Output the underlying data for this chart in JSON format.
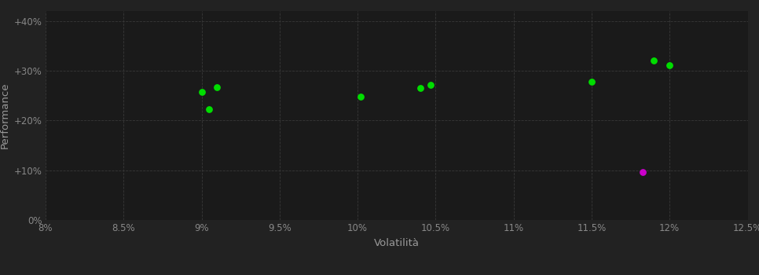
{
  "background_color": "#222222",
  "plot_bg_color": "#1a1a1a",
  "xlabel": "Volatilità",
  "ylabel": "Performance",
  "xlim": [
    0.08,
    0.125
  ],
  "ylim": [
    0.0,
    0.42
  ],
  "xticks": [
    0.08,
    0.085,
    0.09,
    0.095,
    0.1,
    0.105,
    0.11,
    0.115,
    0.12,
    0.125
  ],
  "yticks": [
    0.0,
    0.1,
    0.2,
    0.3,
    0.4
  ],
  "ytick_labels": [
    "0%",
    "+10%",
    "+20%",
    "+30%",
    "+40%"
  ],
  "xtick_labels": [
    "8%",
    "8.5%",
    "9%",
    "9.5%",
    "10%",
    "10.5%",
    "11%",
    "11.5%",
    "12%",
    "12.5%"
  ],
  "green_points": [
    [
      0.09,
      0.257
    ],
    [
      0.091,
      0.267
    ],
    [
      0.0905,
      0.223
    ],
    [
      0.1002,
      0.248
    ],
    [
      0.104,
      0.266
    ],
    [
      0.1047,
      0.272
    ],
    [
      0.115,
      0.278
    ],
    [
      0.119,
      0.32
    ],
    [
      0.12,
      0.311
    ]
  ],
  "magenta_points": [
    [
      0.1183,
      0.096
    ]
  ],
  "green_color": "#00dd00",
  "magenta_color": "#cc00cc",
  "marker_size": 28,
  "tick_color": "#888888",
  "label_color": "#999999",
  "tick_fontsize": 8.5,
  "label_fontsize": 9.5,
  "grid_color": "#383838",
  "grid_linestyle": "--",
  "grid_linewidth": 0.6
}
